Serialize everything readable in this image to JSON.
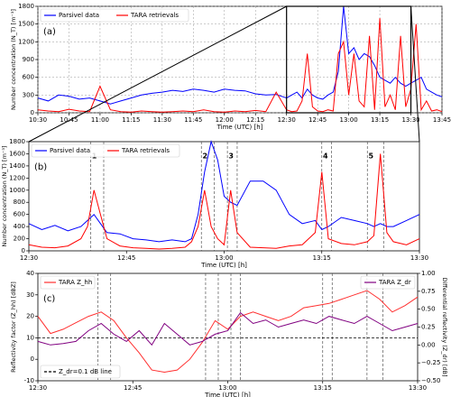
{
  "chart_data": [
    {
      "type": "line",
      "panel_label": "(a)",
      "xlabel": "Time (UTC) [h]",
      "ylabel": "Number concentration (N_T) [m⁻³]",
      "xlim": [
        630,
        825
      ],
      "xticks": [
        {
          "value": 630,
          "label": "10:30"
        },
        {
          "value": 645,
          "label": "10:45"
        },
        {
          "value": 660,
          "label": "11:00"
        },
        {
          "value": 675,
          "label": "11:15"
        },
        {
          "value": 690,
          "label": "11:30"
        },
        {
          "value": 705,
          "label": "11:45"
        },
        {
          "value": 720,
          "label": "12:00"
        },
        {
          "value": 735,
          "label": "12:15"
        },
        {
          "value": 750,
          "label": "12:30"
        },
        {
          "value": 765,
          "label": "12:45"
        },
        {
          "value": 780,
          "label": "13:00"
        },
        {
          "value": 795,
          "label": "13:15"
        },
        {
          "value": 810,
          "label": "13:30"
        },
        {
          "value": 825,
          "label": "13:45"
        }
      ],
      "ylim": [
        0,
        1800
      ],
      "yticks": [
        0,
        300,
        600,
        900,
        1200,
        1500,
        1800
      ],
      "grid": true,
      "legend": "upper left",
      "legend_ncol": 2,
      "x": [
        630,
        635,
        640,
        645,
        650,
        655,
        660,
        665,
        670,
        675,
        680,
        685,
        690,
        695,
        700,
        705,
        710,
        715,
        720,
        725,
        730,
        735,
        740,
        745,
        750,
        752.5,
        755,
        757.5,
        760,
        762.5,
        765,
        767.5,
        770,
        772.5,
        775,
        777.5,
        780,
        782.5,
        785,
        787.5,
        790,
        792.5,
        795,
        797.5,
        800,
        802.5,
        805,
        807.5,
        810,
        812.5,
        815,
        817.5,
        820,
        822.5,
        825
      ],
      "series": [
        {
          "name": "Parsivel data",
          "color": "#0000ff",
          "values": [
            250,
            200,
            300,
            280,
            230,
            250,
            200,
            150,
            200,
            250,
            300,
            330,
            350,
            380,
            360,
            400,
            380,
            350,
            400,
            380,
            370,
            320,
            300,
            310,
            250,
            300,
            350,
            250,
            400,
            300,
            250,
            230,
            300,
            350,
            700,
            1800,
            1000,
            1100,
            900,
            1000,
            950,
            800,
            600,
            550,
            500,
            600,
            500,
            450,
            500,
            550,
            600,
            400,
            350,
            300,
            270
          ]
        },
        {
          "name": "TARA retrievals",
          "color": "#ff0000",
          "values": [
            50,
            30,
            20,
            60,
            30,
            20,
            450,
            50,
            20,
            10,
            30,
            20,
            10,
            20,
            30,
            20,
            50,
            20,
            10,
            30,
            20,
            40,
            20,
            350,
            50,
            20,
            30,
            200,
            1000,
            100,
            30,
            20,
            50,
            30,
            1000,
            1200,
            300,
            1000,
            200,
            100,
            1300,
            50,
            1600,
            100,
            300,
            50,
            1300,
            100,
            400,
            1500,
            50,
            200,
            30,
            50,
            20
          ]
        }
      ]
    },
    {
      "type": "line",
      "panel_label": "(b)",
      "xlabel": "Time (UTC) [h]",
      "ylabel": "Number concentration (N_T) [m⁻³]",
      "xlim": [
        750,
        810
      ],
      "xticks": [
        {
          "value": 750,
          "label": "12:30"
        },
        {
          "value": 765,
          "label": "12:45"
        },
        {
          "value": 780,
          "label": "13:00"
        },
        {
          "value": 795,
          "label": "13:15"
        },
        {
          "value": 810,
          "label": "13:30"
        }
      ],
      "ylim": [
        0,
        1800
      ],
      "yticks": [
        0,
        200,
        400,
        600,
        800,
        1000,
        1200,
        1400,
        1600,
        1800
      ],
      "grid": false,
      "legend": "upper left",
      "legend_ncol": 2,
      "events": [
        {
          "label": "1",
          "start": 759.5,
          "end": 761.5
        },
        {
          "label": "2",
          "start": 776.5,
          "end": 778.5
        },
        {
          "label": "3",
          "start": 780.5,
          "end": 782
        },
        {
          "label": "4",
          "start": 795,
          "end": 796.5
        },
        {
          "label": "5",
          "start": 802,
          "end": 804.5
        }
      ],
      "x": [
        750,
        752,
        754,
        756,
        758,
        759,
        760,
        761,
        762,
        764,
        766,
        768,
        770,
        772,
        774,
        775,
        776,
        777,
        778,
        779,
        780,
        781,
        782,
        784,
        786,
        788,
        790,
        792,
        794,
        795,
        796,
        798,
        800,
        802,
        803,
        804,
        805,
        806,
        808,
        810
      ],
      "series": [
        {
          "name": "Parsivel data",
          "color": "#0000ff",
          "values": [
            450,
            350,
            420,
            330,
            400,
            500,
            600,
            450,
            300,
            280,
            200,
            180,
            150,
            180,
            150,
            200,
            600,
            1300,
            1800,
            1500,
            900,
            800,
            750,
            1150,
            1150,
            1000,
            600,
            450,
            500,
            350,
            400,
            550,
            500,
            450,
            400,
            450,
            400,
            400,
            500,
            600
          ]
        },
        {
          "name": "TARA retrievals",
          "color": "#ff0000",
          "values": [
            100,
            60,
            50,
            80,
            200,
            400,
            1000,
            600,
            200,
            80,
            50,
            40,
            30,
            40,
            60,
            150,
            400,
            1000,
            400,
            200,
            100,
            1000,
            300,
            60,
            50,
            40,
            80,
            100,
            300,
            1300,
            200,
            120,
            100,
            150,
            250,
            1600,
            300,
            150,
            100,
            200
          ]
        }
      ]
    },
    {
      "type": "line",
      "panel_label": "(c)",
      "xlabel": "Time (UTC) [h]",
      "ylabel": "Reflectivity factor (Z_hh) [dBZ]",
      "y2label": "Differential reflectivity (Z_dr) [dB]",
      "xlim": [
        750,
        810
      ],
      "xticks": [
        {
          "value": 750,
          "label": "12:30"
        },
        {
          "value": 765,
          "label": "12:45"
        },
        {
          "value": 780,
          "label": "13:00"
        },
        {
          "value": 795,
          "label": "13:15"
        },
        {
          "value": 810,
          "label": "13:30"
        }
      ],
      "ylim": [
        -10,
        40
      ],
      "yticks": [
        -10,
        0,
        10,
        20,
        30,
        40
      ],
      "y2lim": [
        -0.5,
        1.0
      ],
      "y2ticks": [
        {
          "value": -0.5,
          "label": "−0.50"
        },
        {
          "value": -0.25,
          "label": "−0.25"
        },
        {
          "value": 0,
          "label": "0.00"
        },
        {
          "value": 0.25,
          "label": "0.25"
        },
        {
          "value": 0.5,
          "label": "0.50"
        },
        {
          "value": 0.75,
          "label": "0.75"
        },
        {
          "value": 1,
          "label": "1.00"
        }
      ],
      "grid": false,
      "ref_line": {
        "value": 0.1,
        "axis": "y2",
        "label": "Z_dr=0.1 dB line",
        "legend": "lower left"
      },
      "x": [
        750,
        752,
        754,
        756,
        758,
        760,
        762,
        764,
        766,
        768,
        770,
        772,
        774,
        776,
        778,
        780,
        782,
        784,
        786,
        788,
        790,
        792,
        794,
        796,
        798,
        800,
        802,
        804,
        806,
        808,
        810
      ],
      "series": [
        {
          "name": "TARA Z_hh",
          "color": "#ff3030",
          "legend": "upper left",
          "values": [
            20,
            12,
            14,
            17,
            20,
            22,
            18,
            10,
            3,
            -5,
            -6,
            -5,
            0,
            8,
            18,
            14,
            20,
            22,
            20,
            18,
            20,
            24,
            25,
            26,
            28,
            30,
            32,
            28,
            22,
            25,
            29
          ]
        },
        {
          "name": "TARA Z_dr",
          "color": "#800080",
          "legend": "upper right",
          "axis": "y2",
          "values": [
            0.05,
            0,
            0.02,
            0.05,
            0.2,
            0.3,
            0.15,
            0.05,
            0.2,
            0,
            0.3,
            0.15,
            0,
            0.05,
            0.15,
            0.2,
            0.45,
            0.3,
            0.35,
            0.25,
            0.3,
            0.35,
            0.3,
            0.4,
            0.35,
            0.3,
            0.4,
            0.3,
            0.2,
            0.25,
            0.3
          ]
        }
      ]
    }
  ]
}
